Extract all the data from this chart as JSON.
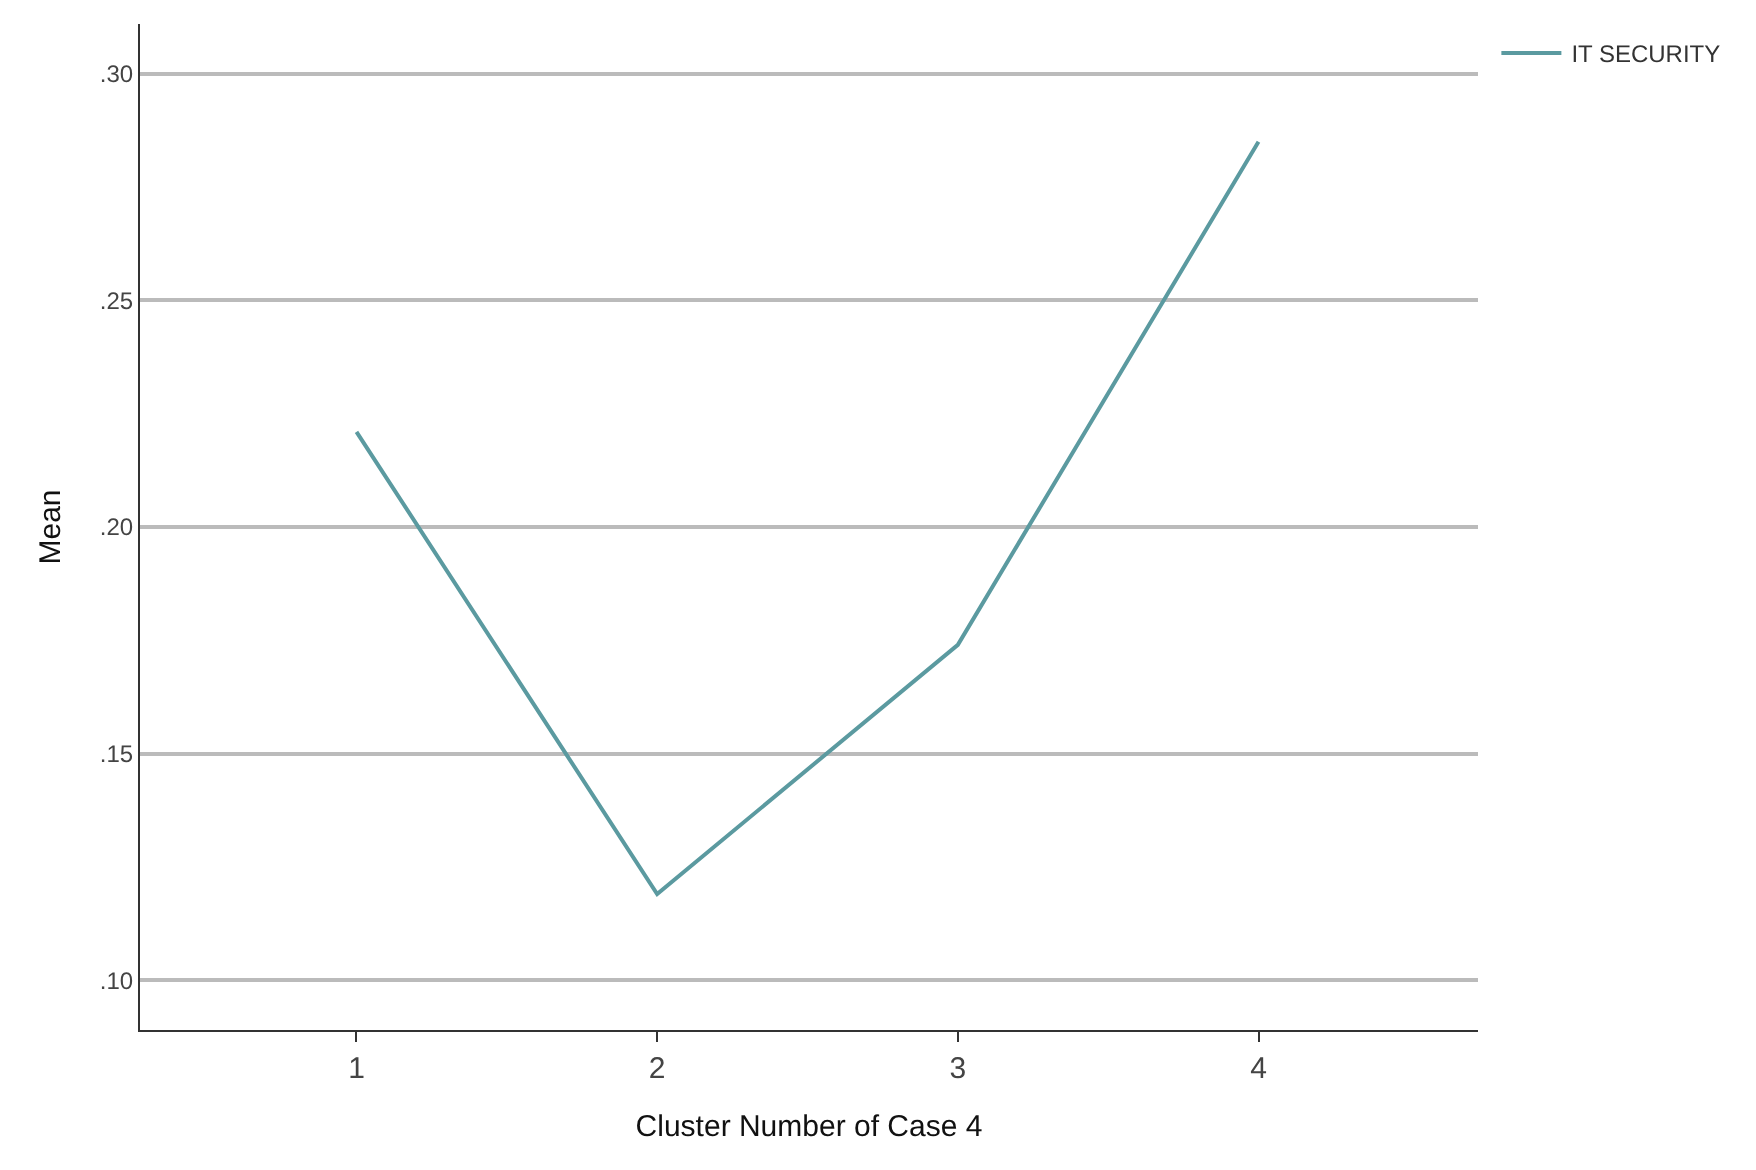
{
  "chart_data": {
    "type": "line",
    "xlabel": "Cluster Number of Case 4",
    "ylabel": "Mean",
    "categories": [
      "1",
      "2",
      "3",
      "4"
    ],
    "series": [
      {
        "name": "IT SECURITY",
        "color": "#5b9aa0",
        "values": [
          0.221,
          0.119,
          0.174,
          0.285
        ]
      }
    ],
    "ylim": [
      0.089,
      0.311
    ],
    "yticks": [
      {
        "value": 0.1,
        "label": ".10"
      },
      {
        "value": 0.15,
        "label": ".15"
      },
      {
        "value": 0.2,
        "label": ".20"
      },
      {
        "value": 0.25,
        "label": ".25"
      },
      {
        "value": 0.3,
        "label": ".30"
      }
    ],
    "grid": "y",
    "legend": "top right",
    "marker": "none",
    "line_style": "solid"
  }
}
